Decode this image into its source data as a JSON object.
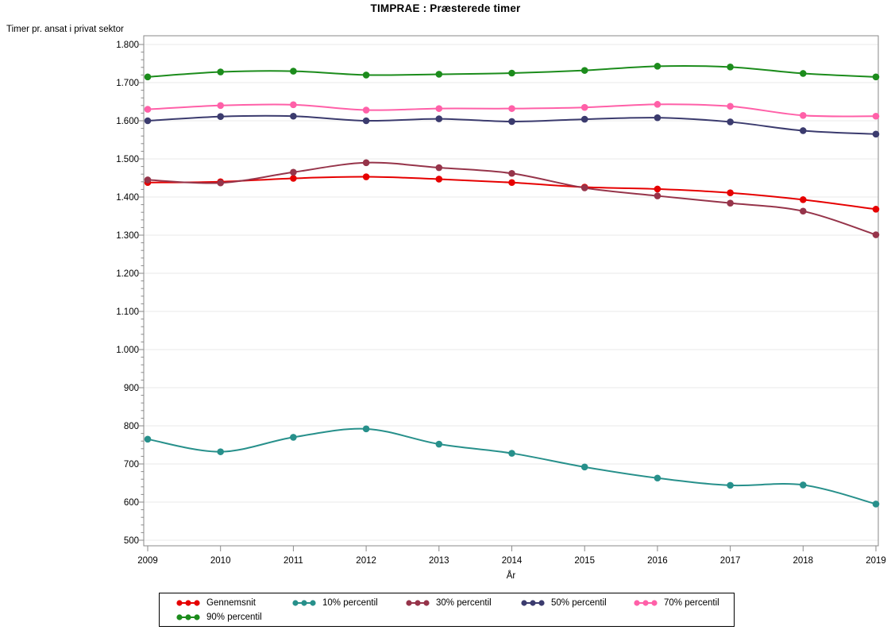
{
  "chart_data": {
    "type": "line",
    "title": "TIMPRAE : Præsterede timer",
    "xlabel": "År",
    "ylabel": "Timer pr. ansat i privat sektor",
    "x_categories": [
      "2009",
      "2010",
      "2011",
      "2012",
      "2013",
      "2014",
      "2015",
      "2016",
      "2017",
      "2018",
      "2019"
    ],
    "ylim": [
      500,
      1800
    ],
    "ytick_values": [
      500,
      600,
      700,
      800,
      900,
      1000,
      1100,
      1200,
      1300,
      1400,
      1500,
      1600,
      1700,
      1800
    ],
    "ytick_labels": [
      "500",
      "600",
      "700",
      "800",
      "900",
      "1.000",
      "1.100",
      "1.200",
      "1.300",
      "1.400",
      "1.500",
      "1.600",
      "1.700",
      "1.800"
    ],
    "y_minor_tick_step": 20,
    "grid": "horizontal-major",
    "legend_position": "bottom",
    "line_style": "smooth-spline-with-markers",
    "series": [
      {
        "name": "Gennemsnit",
        "color": "#E60000",
        "values": [
          1438,
          1440,
          1449,
          1453,
          1447,
          1438,
          1426,
          1421,
          1411,
          1393,
          1368
        ]
      },
      {
        "name": "10% percentil",
        "color": "#27908B",
        "values": [
          765,
          732,
          770,
          792,
          752,
          728,
          692,
          663,
          644,
          645,
          595
        ]
      },
      {
        "name": "30% percentil",
        "color": "#96344A",
        "values": [
          1445,
          1437,
          1465,
          1490,
          1477,
          1462,
          1424,
          1403,
          1384,
          1363,
          1301
        ]
      },
      {
        "name": "50% percentil",
        "color": "#3B3B6E",
        "values": [
          1600,
          1611,
          1612,
          1600,
          1605,
          1598,
          1604,
          1608,
          1597,
          1574,
          1565
        ]
      },
      {
        "name": "70% percentil",
        "color": "#FF60A8",
        "values": [
          1630,
          1640,
          1642,
          1628,
          1632,
          1632,
          1635,
          1643,
          1638,
          1614,
          1612
        ]
      },
      {
        "name": "90% percentil",
        "color": "#1C8C1C",
        "values": [
          1715,
          1728,
          1730,
          1720,
          1722,
          1725,
          1732,
          1743,
          1741,
          1724,
          1715
        ]
      }
    ],
    "style_colors": {
      "gridline": "#E9E9E9",
      "frame": "#8A8A8A",
      "tick": "#8A8A8A",
      "text": "#000000",
      "background": "#FFFFFF"
    }
  }
}
